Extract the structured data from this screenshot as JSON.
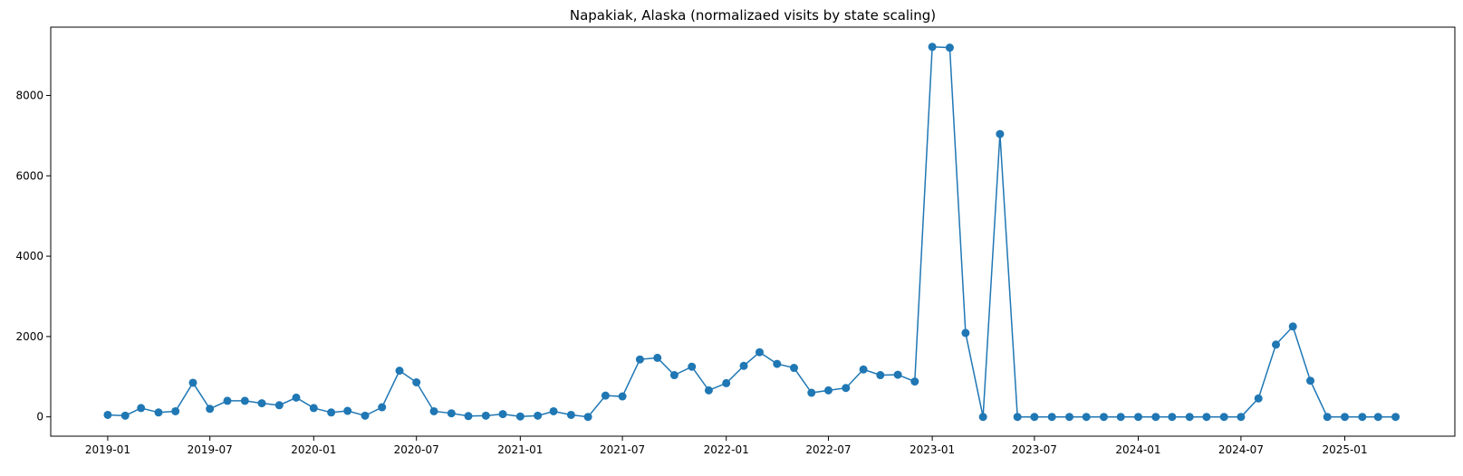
{
  "chart_data": {
    "type": "line",
    "title": "Napakiak, Alaska (normalizaed visits by state scaling)",
    "xlabel": "",
    "ylabel": "",
    "x_tick_labels": [
      "2019-01",
      "2019-07",
      "2020-01",
      "2020-07",
      "2021-01",
      "2021-07",
      "2022-01",
      "2022-07",
      "2023-01",
      "2023-07",
      "2024-01",
      "2024-07",
      "2025-01"
    ],
    "y_tick_labels": [
      "0",
      "2000",
      "4000",
      "6000",
      "8000"
    ],
    "y_ticks": [
      0,
      2000,
      4000,
      6000,
      8000
    ],
    "ylim": [
      -480,
      9700
    ],
    "xlim": [
      "2018-09-22",
      "2025-07-15"
    ],
    "grid": false,
    "legend": "none",
    "series": [
      {
        "color": "#1f77b4",
        "marker": "circle",
        "x": [
          "2019-01",
          "2019-02",
          "2019-03",
          "2019-04",
          "2019-05",
          "2019-06",
          "2019-07",
          "2019-08",
          "2019-09",
          "2019-10",
          "2019-11",
          "2019-12",
          "2020-01",
          "2020-02",
          "2020-03",
          "2020-04",
          "2020-05",
          "2020-06",
          "2020-07",
          "2020-08",
          "2020-09",
          "2020-10",
          "2020-11",
          "2020-12",
          "2021-01",
          "2021-02",
          "2021-03",
          "2021-04",
          "2021-05",
          "2021-06",
          "2021-07",
          "2021-08",
          "2021-09",
          "2021-10",
          "2021-11",
          "2021-12",
          "2022-01",
          "2022-02",
          "2022-03",
          "2022-04",
          "2022-05",
          "2022-06",
          "2022-07",
          "2022-08",
          "2022-09",
          "2022-10",
          "2022-11",
          "2022-12",
          "2023-01",
          "2023-02",
          "2023-03",
          "2023-04",
          "2023-05",
          "2023-06",
          "2023-07",
          "2023-08",
          "2023-09",
          "2023-10",
          "2023-11",
          "2023-12",
          "2024-01",
          "2024-02",
          "2024-03",
          "2024-04",
          "2024-05",
          "2024-06",
          "2024-07",
          "2024-08",
          "2024-09",
          "2024-10",
          "2024-11",
          "2024-12",
          "2025-01",
          "2025-02",
          "2025-03",
          "2025-04"
        ],
        "values": [
          50,
          30,
          220,
          110,
          140,
          850,
          200,
          400,
          400,
          340,
          290,
          480,
          220,
          110,
          150,
          30,
          240,
          1150,
          860,
          140,
          90,
          20,
          30,
          70,
          10,
          30,
          140,
          50,
          0,
          530,
          510,
          1430,
          1470,
          1040,
          1250,
          660,
          840,
          1270,
          1610,
          1320,
          1220,
          600,
          660,
          720,
          1180,
          1040,
          1050,
          880,
          9210,
          9190,
          2090,
          0,
          7040,
          0,
          0,
          0,
          0,
          0,
          0,
          0,
          0,
          0,
          0,
          0,
          0,
          0,
          0,
          460,
          1800,
          2250,
          900,
          0,
          0,
          0,
          0,
          0
        ]
      }
    ]
  }
}
